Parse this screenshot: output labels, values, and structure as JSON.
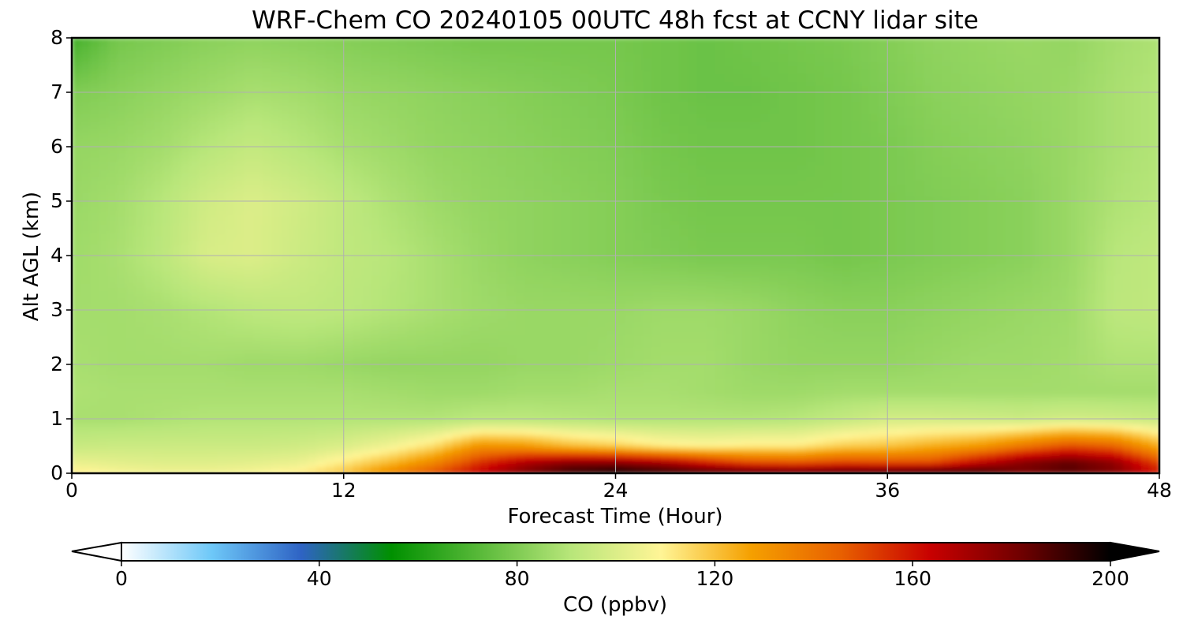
{
  "chart_data": {
    "type": "heatmap",
    "title": "WRF-Chem CO  20240105 00UTC 48h fcst at CCNY lidar site",
    "xlabel": "Forecast Time (Hour)",
    "ylabel": "Alt AGL (km)",
    "xlim": [
      0,
      48
    ],
    "ylim": [
      0,
      8
    ],
    "xticks": [
      "0",
      "12",
      "24",
      "36",
      "48"
    ],
    "yticks": [
      "0",
      "1",
      "2",
      "3",
      "4",
      "5",
      "6",
      "7",
      "8"
    ],
    "grid": true,
    "colorbar": {
      "label": "CO  (ppbv)",
      "range": [
        0,
        200
      ],
      "ticks": [
        "0",
        "40",
        "80",
        "120",
        "160",
        "200"
      ],
      "extend": "both",
      "colors": [
        "#ffffff",
        "#6ec8f8",
        "#2e63c4",
        "#009000",
        "#5aba3a",
        "#b8e67a",
        "#fff596",
        "#f5a000",
        "#e86000",
        "#c80000",
        "#700000",
        "#000000"
      ]
    },
    "x_hours": [
      0,
      2,
      4,
      6,
      8,
      10,
      12,
      14,
      16,
      18,
      20,
      22,
      24,
      26,
      28,
      30,
      32,
      34,
      36,
      38,
      40,
      42,
      44,
      46,
      48
    ],
    "alt_km": [
      0,
      0.2,
      0.5,
      1,
      1.5,
      2,
      3,
      4,
      5,
      6,
      7,
      8
    ],
    "co_ppbv_rows": [
      [
        112,
        108,
        106,
        106,
        108,
        112,
        120,
        135,
        150,
        165,
        180,
        193,
        200,
        196,
        193,
        192,
        192,
        193,
        195,
        198,
        195,
        180,
        185,
        178,
        160
      ],
      [
        104,
        102,
        101,
        101,
        102,
        104,
        112,
        122,
        135,
        155,
        170,
        178,
        178,
        172,
        160,
        150,
        148,
        152,
        150,
        150,
        165,
        178,
        185,
        176,
        150
      ],
      [
        95,
        96,
        96,
        96,
        96,
        97,
        100,
        106,
        115,
        132,
        130,
        122,
        118,
        112,
        110,
        112,
        112,
        118,
        120,
        125,
        130,
        140,
        150,
        145,
        125
      ],
      [
        88,
        88,
        89,
        90,
        90,
        90,
        90,
        90,
        90,
        92,
        92,
        91,
        90,
        90,
        90,
        90,
        91,
        94,
        98,
        98,
        97,
        96,
        98,
        97,
        95
      ],
      [
        89,
        88,
        88,
        88,
        88,
        88,
        88,
        87,
        86,
        86,
        87,
        87,
        88,
        88,
        87,
        86,
        86,
        87,
        87,
        87,
        87,
        87,
        87,
        87,
        87
      ],
      [
        88,
        87,
        87,
        87,
        86,
        86,
        85,
        84,
        84,
        84,
        85,
        85,
        86,
        87,
        87,
        85,
        84,
        84,
        84,
        85,
        86,
        86,
        87,
        89,
        89
      ],
      [
        87,
        87,
        88,
        90,
        92,
        93,
        92,
        90,
        88,
        86,
        85,
        85,
        85,
        86,
        86,
        85,
        83,
        82,
        82,
        83,
        84,
        85,
        86,
        92,
        93
      ],
      [
        86,
        88,
        92,
        99,
        100,
        96,
        93,
        91,
        88,
        85,
        83,
        82,
        81,
        80,
        79,
        79,
        79,
        78,
        79,
        80,
        81,
        82,
        85,
        91,
        93
      ],
      [
        85,
        87,
        91,
        97,
        100,
        97,
        93,
        89,
        86,
        84,
        83,
        82,
        81,
        79,
        78,
        78,
        78,
        78,
        79,
        80,
        81,
        82,
        85,
        89,
        91
      ],
      [
        84,
        85,
        87,
        91,
        94,
        91,
        88,
        86,
        84,
        83,
        82,
        81,
        80,
        78,
        77,
        77,
        77,
        78,
        79,
        81,
        82,
        83,
        85,
        88,
        90
      ],
      [
        80,
        82,
        84,
        86,
        88,
        87,
        85,
        84,
        83,
        82,
        81,
        80,
        79,
        77,
        76,
        76,
        77,
        78,
        80,
        82,
        83,
        84,
        85,
        88,
        90
      ],
      [
        68,
        78,
        80,
        82,
        83,
        82,
        81,
        80,
        79,
        78,
        78,
        78,
        78,
        77,
        76,
        77,
        78,
        79,
        81,
        83,
        84,
        85,
        84,
        87,
        89
      ]
    ]
  }
}
